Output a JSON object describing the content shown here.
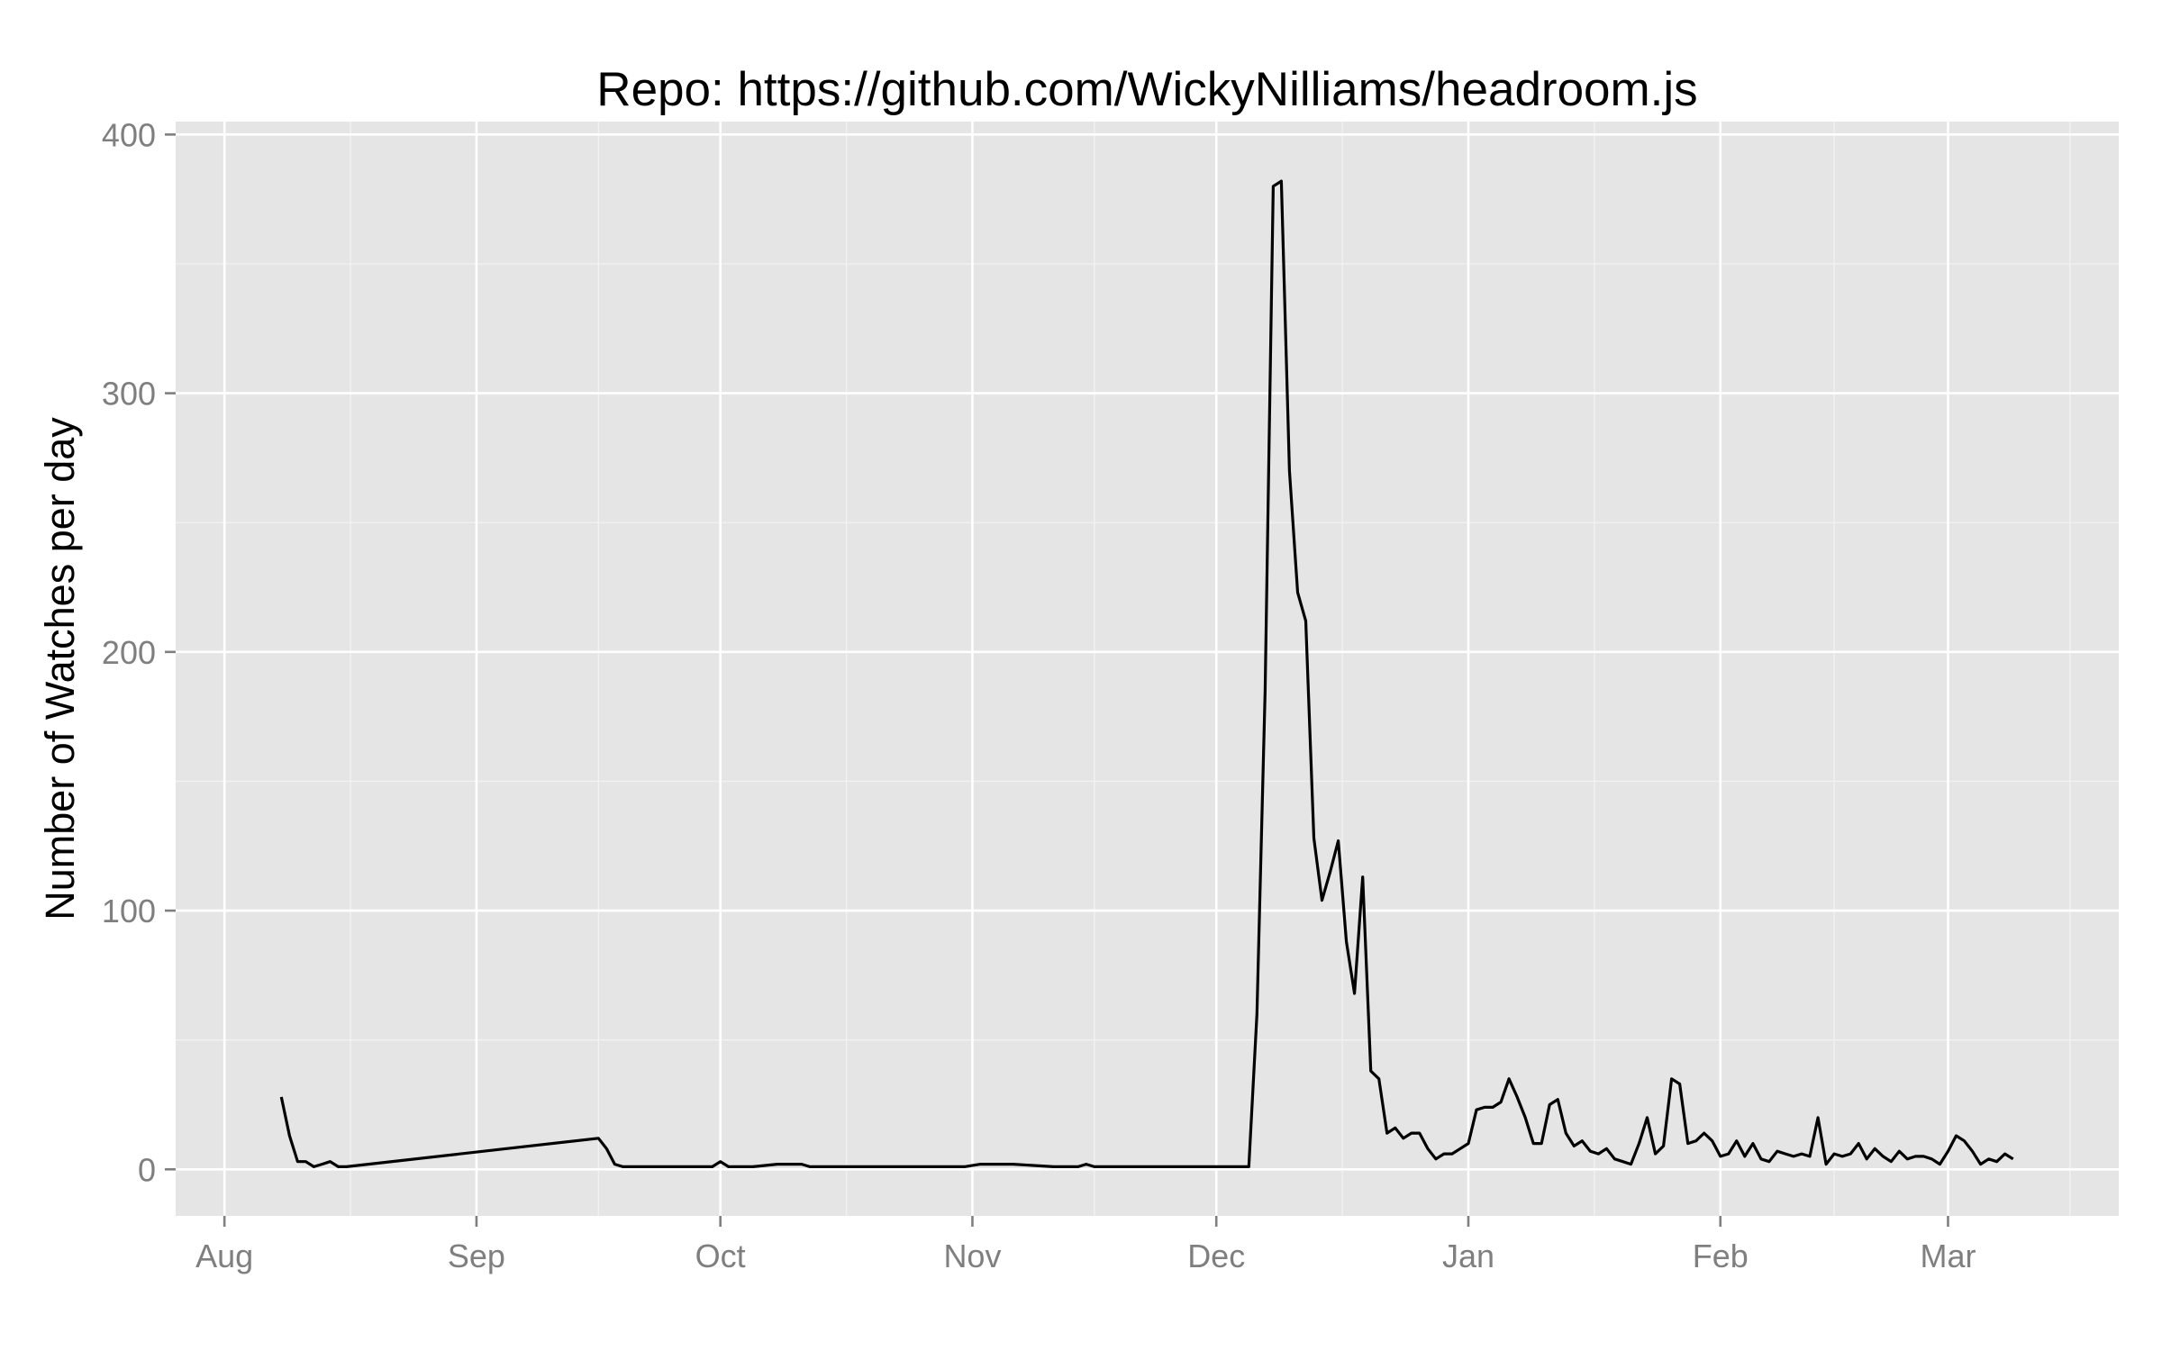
{
  "chart_data": {
    "type": "line",
    "title": "Repo: https://github.com/WickyNilliams/headroom.js",
    "xlabel": "",
    "ylabel": "Number of Watches per day",
    "x_axis_type": "date",
    "xlim": [
      "2013-07-26",
      "2014-03-22"
    ],
    "ylim": [
      -18,
      405
    ],
    "y_ticks": [
      0,
      100,
      200,
      300,
      400
    ],
    "x_ticks": [
      {
        "date": "2013-08-01",
        "label": "Aug"
      },
      {
        "date": "2013-09-01",
        "label": "Sep"
      },
      {
        "date": "2013-10-01",
        "label": "Oct"
      },
      {
        "date": "2013-11-01",
        "label": "Nov"
      },
      {
        "date": "2013-12-01",
        "label": "Dec"
      },
      {
        "date": "2014-01-01",
        "label": "Jan"
      },
      {
        "date": "2014-02-01",
        "label": "Feb"
      },
      {
        "date": "2014-03-01",
        "label": "Mar"
      }
    ],
    "grid": true,
    "legend": "none",
    "colors": {
      "panel_background": "#e5e5e5",
      "grid_major": "#ffffff",
      "grid_minor": "#f2f2f2",
      "line": "#000000",
      "tick_label": "#7f7f7f",
      "tick_mark": "#7f7f7f"
    },
    "series": [
      {
        "x": [
          "2013-08-08",
          "2013-08-09",
          "2013-08-10",
          "2013-08-11",
          "2013-08-12",
          "2013-08-13",
          "2013-08-14",
          "2013-08-15",
          "2013-08-16",
          "2013-09-16",
          "2013-09-17",
          "2013-09-18",
          "2013-09-19",
          "2013-09-20",
          "2013-09-21",
          "2013-09-30",
          "2013-10-01",
          "2013-10-02",
          "2013-10-05",
          "2013-10-08",
          "2013-10-11",
          "2013-10-12",
          "2013-10-31",
          "2013-11-02",
          "2013-11-06",
          "2013-11-11",
          "2013-11-14",
          "2013-11-15",
          "2013-11-16",
          "2013-12-01",
          "2013-12-05",
          "2013-12-06",
          "2013-12-07",
          "2013-12-08",
          "2013-12-09",
          "2013-12-10",
          "2013-12-11",
          "2013-12-12",
          "2013-12-13",
          "2013-12-14",
          "2013-12-15",
          "2013-12-16",
          "2013-12-17",
          "2013-12-18",
          "2013-12-19",
          "2013-12-20",
          "2013-12-21",
          "2013-12-22",
          "2013-12-23",
          "2013-12-24",
          "2013-12-25",
          "2013-12-26",
          "2013-12-27",
          "2013-12-28",
          "2013-12-29",
          "2013-12-30",
          "2013-12-31",
          "2014-01-01",
          "2014-01-02",
          "2014-01-03",
          "2014-01-04",
          "2014-01-05",
          "2014-01-06",
          "2014-01-07",
          "2014-01-08",
          "2014-01-09",
          "2014-01-10",
          "2014-01-11",
          "2014-01-12",
          "2014-01-13",
          "2014-01-14",
          "2014-01-15",
          "2014-01-16",
          "2014-01-17",
          "2014-01-18",
          "2014-01-19",
          "2014-01-20",
          "2014-01-21",
          "2014-01-22",
          "2014-01-23",
          "2014-01-24",
          "2014-01-25",
          "2014-01-26",
          "2014-01-27",
          "2014-01-28",
          "2014-01-29",
          "2014-01-30",
          "2014-01-31",
          "2014-02-01",
          "2014-02-02",
          "2014-02-03",
          "2014-02-04",
          "2014-02-05",
          "2014-02-06",
          "2014-02-07",
          "2014-02-08",
          "2014-02-09",
          "2014-02-10",
          "2014-02-11",
          "2014-02-12",
          "2014-02-13",
          "2014-02-14",
          "2014-02-15",
          "2014-02-16",
          "2014-02-17",
          "2014-02-18",
          "2014-02-19",
          "2014-02-20",
          "2014-02-21",
          "2014-02-22",
          "2014-02-23",
          "2014-02-24",
          "2014-02-25",
          "2014-02-26",
          "2014-02-27",
          "2014-02-28",
          "2014-03-01",
          "2014-03-02",
          "2014-03-03",
          "2014-03-04",
          "2014-03-05",
          "2014-03-06",
          "2014-03-07",
          "2014-03-08",
          "2014-03-09"
        ],
        "values": [
          28,
          13,
          3,
          3,
          1,
          2,
          3,
          1,
          1,
          12,
          8,
          2,
          1,
          1,
          1,
          1,
          3,
          1,
          1,
          2,
          2,
          1,
          1,
          2,
          2,
          1,
          1,
          2,
          1,
          1,
          1,
          60,
          185,
          380,
          382,
          270,
          223,
          212,
          128,
          104,
          115,
          127,
          88,
          68,
          113,
          38,
          35,
          14,
          16,
          12,
          14,
          14,
          8,
          4,
          6,
          6,
          8,
          10,
          23,
          24,
          24,
          26,
          35,
          28,
          20,
          10,
          10,
          25,
          27,
          14,
          9,
          11,
          7,
          6,
          8,
          4,
          3,
          2,
          10,
          20,
          6,
          9,
          35,
          33,
          10,
          11,
          14,
          11,
          5,
          6,
          11,
          5,
          10,
          4,
          3,
          7,
          6,
          5,
          6,
          5,
          20,
          2,
          6,
          5,
          6,
          10,
          4,
          8,
          5,
          3,
          7,
          4,
          5,
          5,
          4,
          2,
          7,
          13,
          11,
          7,
          2,
          4,
          3,
          6,
          4
        ]
      }
    ]
  }
}
